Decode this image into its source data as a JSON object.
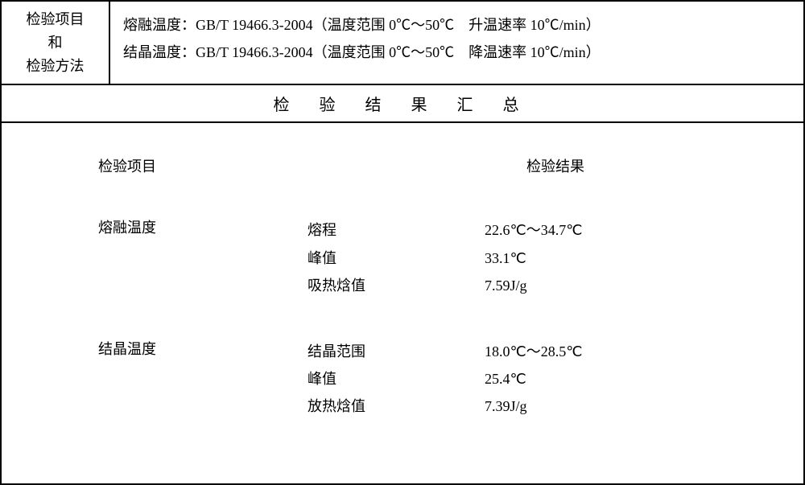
{
  "top": {
    "left_line1": "检验项目",
    "left_line2": "和",
    "left_line3": "检验方法",
    "method1": "熔融温度：GB/T 19466.3-2004（温度范围 0℃～50℃　升温速率 10℃/min）",
    "method2": "结晶温度：GB/T 19466.3-2004（温度范围 0℃～50℃　降温速率 10℃/min）"
  },
  "summary_title": "检 验 结 果 汇 总",
  "headers": {
    "item": "检验项目",
    "result": "检验结果"
  },
  "sections": {
    "melt": {
      "label": "熔融温度",
      "rows": {
        "r1": {
          "label": "熔程",
          "value": "22.6℃～34.7℃"
        },
        "r2": {
          "label": "峰值",
          "value": "33.1℃"
        },
        "r3": {
          "label": "吸热焓值",
          "value": "7.59J/g"
        }
      }
    },
    "cryst": {
      "label": "结晶温度",
      "rows": {
        "r1": {
          "label": "结晶范围",
          "value": "18.0℃～28.5℃"
        },
        "r2": {
          "label": "峰值",
          "value": "25.4℃"
        },
        "r3": {
          "label": "放热焓值",
          "value": "7.39J/g"
        }
      }
    }
  }
}
